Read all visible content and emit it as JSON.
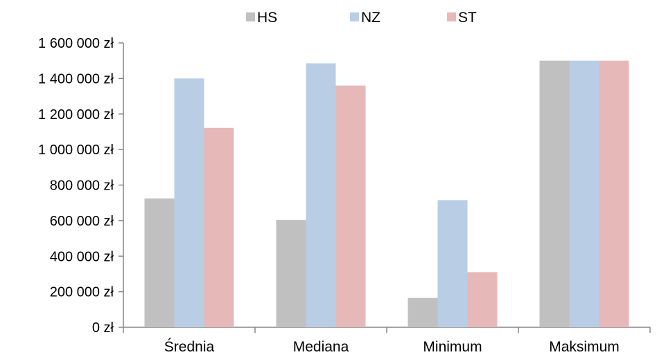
{
  "chart_data": {
    "type": "bar",
    "categories": [
      "Średnia",
      "Mediana",
      "Minimum",
      "Maksimum"
    ],
    "series": [
      {
        "name": "HS",
        "color": "#c0c0c0",
        "values": [
          725000,
          603000,
          165000,
          1500000
        ]
      },
      {
        "name": "NZ",
        "color": "#b9cde5",
        "values": [
          1400000,
          1485000,
          715000,
          1500000
        ]
      },
      {
        "name": "ST",
        "color": "#e6b9b8",
        "values": [
          1122000,
          1360000,
          310000,
          1500000
        ]
      }
    ],
    "y_ticks": [
      "0 zł",
      "200 000 zł",
      "400 000 zł",
      "600 000 zł",
      "800 000 zł",
      "1 000 000 zł",
      "1 200 000 zł",
      "1 400 000 zł",
      "1 600 000 zł"
    ],
    "ylim": [
      0,
      1600000
    ],
    "ytick_step": 200000,
    "legend_position": "top-center",
    "grid": false,
    "axis_color": "#868686"
  }
}
